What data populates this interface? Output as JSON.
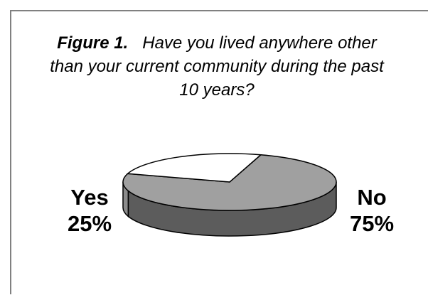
{
  "figure": {
    "prefix": "Figure 1.",
    "question": "Have you lived anywhere other than your current community during the past 10 years?"
  },
  "chart_data": {
    "type": "pie",
    "style": "3d",
    "categories": [
      "Yes",
      "No"
    ],
    "values": [
      25,
      75
    ],
    "labels": [
      {
        "category": "Yes",
        "value_label": "25%"
      },
      {
        "category": "No",
        "value_label": "75%"
      }
    ],
    "colors": {
      "Yes": "#ffffff",
      "No": "#a0a0a0",
      "No_side": "#5c5c5c",
      "Yes_side": "#8c8c8c"
    }
  }
}
